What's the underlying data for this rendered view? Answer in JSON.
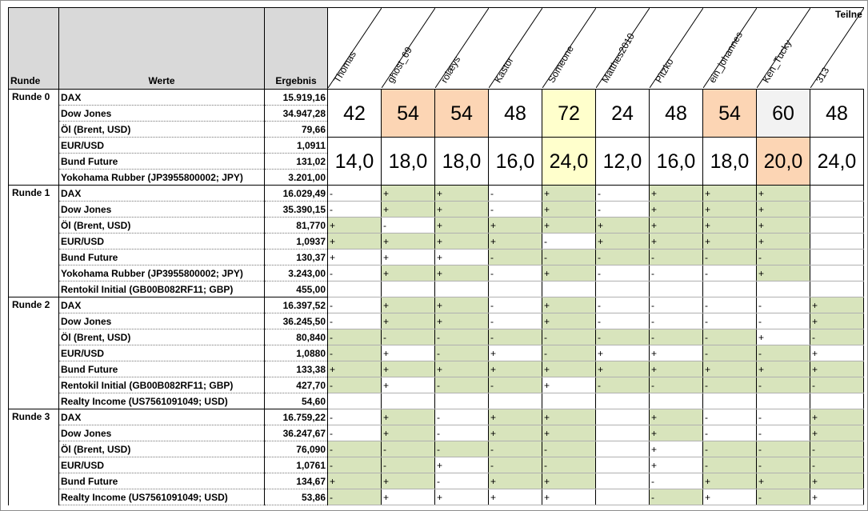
{
  "headers": {
    "runde": "Runde",
    "werte": "Werte",
    "ergebnis": "Ergebnis",
    "teilnehmer": "Teilne"
  },
  "participants": [
    "Thomas",
    "ghost_69",
    "rolæys",
    "Kastor",
    "Someone",
    "Matthes2010",
    "Pitzko",
    "ein_johannes",
    "Ken_Tucky",
    "313"
  ],
  "round0": {
    "label": "Runde 0",
    "rows": [
      {
        "wert": "DAX",
        "ergebnis": "15.919,16"
      },
      {
        "wert": "Dow Jones",
        "ergebnis": "34.947,28"
      },
      {
        "wert": "Öl (Brent, USD)",
        "ergebnis": "79,66"
      },
      {
        "wert": "EUR/USD",
        "ergebnis": "1,0911"
      },
      {
        "wert": "Bund Future",
        "ergebnis": "131,02"
      },
      {
        "wert": "Yokohama Rubber (JP3955800002; JPY)",
        "ergebnis": "3.201,00"
      }
    ],
    "scores": [
      "42",
      "54",
      "54",
      "48",
      "72",
      "24",
      "48",
      "54",
      "60",
      "48"
    ],
    "scores_bg": [
      "w",
      "p",
      "p",
      "w",
      "y",
      "w",
      "w",
      "p",
      "d",
      "w"
    ],
    "averages": [
      "14,0",
      "18,0",
      "18,0",
      "16,0",
      "24,0",
      "12,0",
      "16,0",
      "18,0",
      "20,0",
      "24,0"
    ],
    "averages_bg": [
      "w",
      "w",
      "w",
      "w",
      "y",
      "w",
      "w",
      "w",
      "p",
      "w"
    ]
  },
  "rounds": [
    {
      "label": "Runde 1",
      "rows": [
        {
          "wert": "DAX",
          "ergebnis": "16.029,49",
          "picks": [
            "-",
            "+",
            "+",
            "-",
            "+",
            "-",
            "+",
            "+",
            "+",
            ""
          ],
          "fill": [
            0,
            1,
            1,
            0,
            1,
            0,
            1,
            1,
            1,
            0
          ]
        },
        {
          "wert": "Dow Jones",
          "ergebnis": "35.390,15",
          "picks": [
            "-",
            "+",
            "+",
            "-",
            "+",
            "-",
            "+",
            "+",
            "+",
            ""
          ],
          "fill": [
            0,
            1,
            1,
            0,
            1,
            0,
            1,
            1,
            1,
            0
          ]
        },
        {
          "wert": "Öl (Brent, USD)",
          "ergebnis": "81,770",
          "picks": [
            "+",
            "-",
            "+",
            "+",
            "+",
            "+",
            "+",
            "+",
            "+",
            ""
          ],
          "fill": [
            1,
            0,
            1,
            1,
            1,
            1,
            1,
            1,
            1,
            0
          ]
        },
        {
          "wert": "EUR/USD",
          "ergebnis": "1,0937",
          "picks": [
            "+",
            "+",
            "+",
            "+",
            "-",
            "+",
            "+",
            "+",
            "+",
            ""
          ],
          "fill": [
            1,
            1,
            1,
            1,
            0,
            1,
            1,
            1,
            1,
            0
          ]
        },
        {
          "wert": "Bund Future",
          "ergebnis": "130,37",
          "picks": [
            "+",
            "+",
            "+",
            "-",
            "-",
            "-",
            "-",
            "-",
            "-",
            ""
          ],
          "fill": [
            0,
            0,
            0,
            1,
            1,
            1,
            1,
            1,
            1,
            0
          ]
        },
        {
          "wert": "Yokohama Rubber (JP3955800002; JPY)",
          "ergebnis": "3.243,00",
          "picks": [
            "-",
            "+",
            "+",
            "-",
            "+",
            "-",
            "-",
            "-",
            "+",
            ""
          ],
          "fill": [
            0,
            1,
            1,
            0,
            1,
            0,
            0,
            0,
            1,
            0
          ]
        },
        {
          "wert": "Rentokil Initial (GB00B082RF11; GBP)",
          "ergebnis": "455,00",
          "picks": [
            "",
            "",
            "",
            "",
            "",
            "",
            "",
            "",
            "",
            ""
          ],
          "fill": [
            0,
            0,
            0,
            0,
            0,
            0,
            0,
            0,
            0,
            0
          ]
        }
      ]
    },
    {
      "label": "Runde 2",
      "rows": [
        {
          "wert": "DAX",
          "ergebnis": "16.397,52",
          "picks": [
            "-",
            "+",
            "+",
            "-",
            "+",
            "-",
            "-",
            "-",
            "-",
            "+"
          ],
          "fill": [
            0,
            1,
            1,
            0,
            1,
            0,
            0,
            0,
            0,
            1
          ]
        },
        {
          "wert": "Dow Jones",
          "ergebnis": "36.245,50",
          "picks": [
            "-",
            "+",
            "+",
            "-",
            "+",
            "-",
            "-",
            "-",
            "-",
            "+"
          ],
          "fill": [
            0,
            1,
            1,
            0,
            1,
            0,
            0,
            0,
            0,
            1
          ]
        },
        {
          "wert": "Öl (Brent, USD)",
          "ergebnis": "80,840",
          "picks": [
            "-",
            "-",
            "-",
            "-",
            "-",
            "-",
            "-",
            "-",
            "+",
            "-"
          ],
          "fill": [
            1,
            1,
            1,
            1,
            1,
            1,
            1,
            1,
            0,
            1
          ]
        },
        {
          "wert": "EUR/USD",
          "ergebnis": "1,0880",
          "picks": [
            "-",
            "+",
            "-",
            "+",
            "-",
            "+",
            "+",
            "-",
            "-",
            "+"
          ],
          "fill": [
            1,
            0,
            1,
            0,
            1,
            0,
            0,
            1,
            1,
            0
          ]
        },
        {
          "wert": "Bund Future",
          "ergebnis": "133,38",
          "picks": [
            "+",
            "+",
            "+",
            "+",
            "+",
            "+",
            "+",
            "+",
            "+",
            "+"
          ],
          "fill": [
            1,
            1,
            1,
            1,
            1,
            1,
            1,
            1,
            1,
            1
          ]
        },
        {
          "wert": "Rentokil Initial (GB00B082RF11; GBP)",
          "ergebnis": "427,70",
          "picks": [
            "-",
            "+",
            "-",
            "-",
            "+",
            "-",
            "-",
            "-",
            "-",
            "-"
          ],
          "fill": [
            1,
            0,
            1,
            1,
            0,
            1,
            1,
            1,
            1,
            1
          ]
        },
        {
          "wert": "Realty Income (US7561091049; USD)",
          "ergebnis": "54,60",
          "picks": [
            "",
            "",
            "",
            "",
            "",
            "",
            "",
            "",
            "",
            ""
          ],
          "fill": [
            0,
            0,
            0,
            0,
            0,
            0,
            0,
            0,
            0,
            0
          ]
        }
      ]
    },
    {
      "label": "Runde 3",
      "rows": [
        {
          "wert": "DAX",
          "ergebnis": "16.759,22",
          "picks": [
            "-",
            "+",
            "-",
            "+",
            "+",
            "",
            "+",
            "-",
            "-",
            "+"
          ],
          "fill": [
            0,
            1,
            0,
            1,
            1,
            0,
            1,
            0,
            0,
            1
          ]
        },
        {
          "wert": "Dow Jones",
          "ergebnis": "36.247,67",
          "picks": [
            "-",
            "+",
            "-",
            "+",
            "+",
            "",
            "+",
            "-",
            "-",
            "+"
          ],
          "fill": [
            0,
            1,
            0,
            1,
            1,
            0,
            1,
            0,
            0,
            1
          ]
        },
        {
          "wert": "Öl (Brent, USD)",
          "ergebnis": "76,090",
          "picks": [
            "-",
            "-",
            "-",
            "-",
            "-",
            "",
            "+",
            "-",
            "-",
            "-"
          ],
          "fill": [
            1,
            1,
            1,
            1,
            1,
            0,
            0,
            1,
            1,
            1
          ]
        },
        {
          "wert": "EUR/USD",
          "ergebnis": "1,0761",
          "picks": [
            "-",
            "-",
            "+",
            "-",
            "-",
            "",
            "+",
            "-",
            "-",
            "-"
          ],
          "fill": [
            1,
            1,
            0,
            1,
            1,
            0,
            0,
            1,
            1,
            1
          ]
        },
        {
          "wert": "Bund Future",
          "ergebnis": "134,67",
          "picks": [
            "+",
            "+",
            "-",
            "+",
            "+",
            "",
            "-",
            "+",
            "+",
            "+"
          ],
          "fill": [
            1,
            1,
            0,
            1,
            1,
            0,
            0,
            1,
            1,
            1
          ]
        },
        {
          "wert": "Realty Income (US7561091049; USD)",
          "ergebnis": "53,86",
          "picks": [
            "-",
            "+",
            "+",
            "+",
            "+",
            "",
            "-",
            "+",
            "-",
            "+"
          ],
          "fill": [
            1,
            0,
            0,
            0,
            0,
            0,
            1,
            0,
            1,
            0
          ]
        }
      ]
    }
  ],
  "colors": {
    "green": "#d8e4bc",
    "peach": "#fcd5b4",
    "yellow": "#ffffcc",
    "header_gray": "#d9d9d9"
  }
}
